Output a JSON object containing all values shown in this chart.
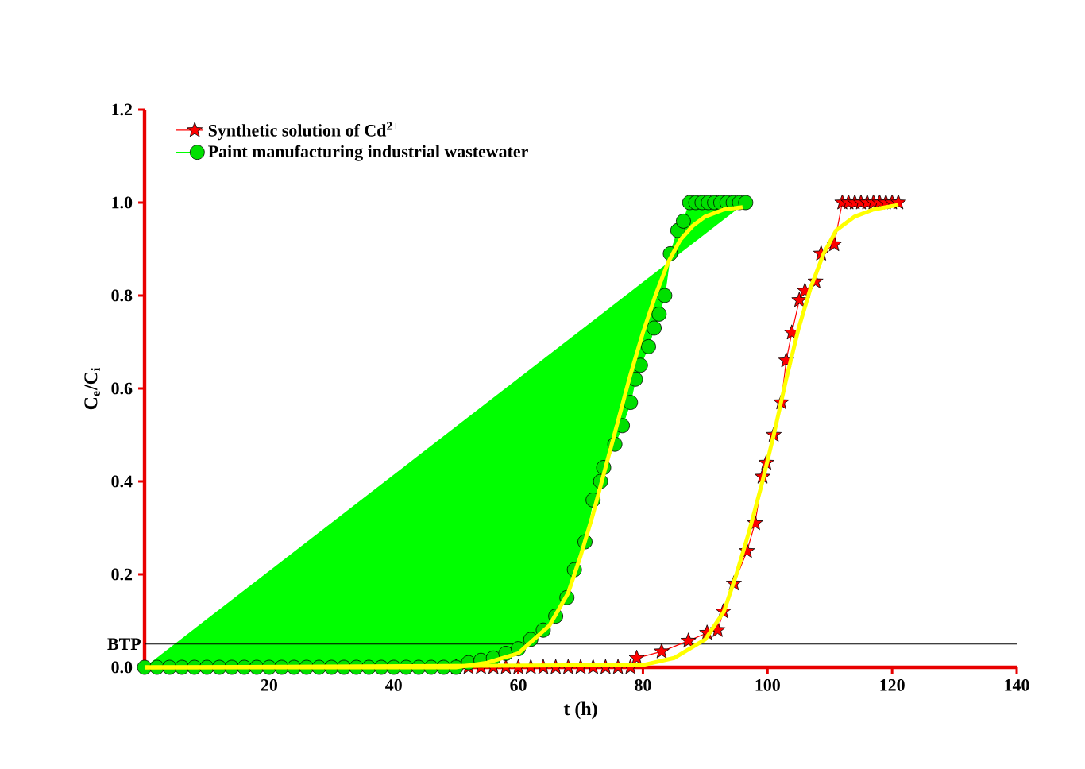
{
  "chart_data": {
    "type": "line",
    "xlabel": "t (h)",
    "ylabel": "C$_{e}$/C$_{i}$",
    "xlim": [
      0,
      140
    ],
    "ylim": [
      0,
      1.2
    ],
    "xticks": [
      20,
      40,
      60,
      80,
      100,
      120,
      140
    ],
    "yticks": [
      {
        "value": 0,
        "label": "0.0"
      },
      {
        "value": 0.2,
        "label": "0.2"
      },
      {
        "value": 0.4,
        "label": "0.4"
      },
      {
        "value": 0.6,
        "label": "0.6"
      },
      {
        "value": 0.8,
        "label": "0.8"
      },
      {
        "value": 1.0,
        "label": "1.0"
      },
      {
        "value": 1.2,
        "label": "1.2"
      }
    ],
    "grid": false,
    "legend": "top left",
    "ref_lines": [
      {
        "axis": "y",
        "value": 0.05,
        "label": "BTP",
        "color": "#000000"
      }
    ],
    "series": [
      {
        "name": "Synthetic solution of Cd$^{2+}$",
        "color": "#ff0000",
        "marker": "star",
        "x": [
          50,
          52,
          54,
          56,
          58,
          60,
          62,
          64,
          66,
          68,
          70,
          72,
          74,
          76,
          78,
          79,
          83,
          87.3,
          90.3,
          92,
          92.9,
          94.6,
          96.7,
          98,
          99.2,
          99.8,
          101,
          102.2,
          103,
          103.9,
          105.1,
          106,
          107.7,
          108.6,
          110.7,
          112,
          113,
          114,
          115,
          116,
          117,
          118,
          119,
          120,
          121
        ],
        "values": [
          0,
          0,
          0,
          0,
          0,
          0,
          0,
          0,
          0,
          0,
          0,
          0,
          0,
          0,
          0,
          0.02,
          0.034,
          0.057,
          0.074,
          0.08,
          0.12,
          0.18,
          0.25,
          0.31,
          0.41,
          0.44,
          0.5,
          0.57,
          0.66,
          0.72,
          0.79,
          0.81,
          0.83,
          0.89,
          0.91,
          1.0,
          1.0,
          1.0,
          1.0,
          1.0,
          1.0,
          1.0,
          1.0,
          1.0,
          1.0
        ]
      },
      {
        "name": "Paint manufacturing industrial wastewater",
        "type": "area",
        "color": "#00ff00",
        "marker": "circle",
        "x": [
          0,
          2,
          4,
          6,
          8,
          10,
          12,
          14,
          16,
          18,
          20,
          22,
          24,
          26,
          28,
          30,
          32,
          34,
          36,
          38,
          40,
          42,
          44,
          46,
          48,
          50,
          52,
          54,
          56,
          58,
          60,
          62,
          64,
          66,
          67.8,
          69,
          70.7,
          72,
          73.2,
          73.7,
          75.5,
          76.7,
          78,
          78.8,
          79.6,
          80.9,
          81.8,
          82.6,
          83.5,
          84.4,
          85.6,
          86.5,
          87.5,
          88.5,
          89.5,
          90.5,
          91.5,
          92.5,
          93.5,
          94.5,
          95.5,
          96.5
        ],
        "values": [
          0,
          0,
          0,
          0,
          0,
          0,
          0,
          0,
          0,
          0,
          0,
          0,
          0,
          0,
          0,
          0,
          0,
          0,
          0,
          0,
          0,
          0,
          0,
          0,
          0,
          0,
          0.01,
          0.015,
          0.02,
          0.03,
          0.04,
          0.06,
          0.08,
          0.11,
          0.15,
          0.21,
          0.27,
          0.36,
          0.4,
          0.43,
          0.48,
          0.52,
          0.57,
          0.62,
          0.65,
          0.69,
          0.73,
          0.76,
          0.8,
          0.89,
          0.94,
          0.96,
          1.0,
          1.0,
          1.0,
          1.0,
          1.0,
          1.0,
          1.0,
          1.0,
          1.0,
          1.0
        ]
      },
      {
        "color": "#ffff00",
        "marker": "none",
        "x": [
          0,
          50,
          55,
          60,
          65,
          68,
          70,
          72,
          74,
          76,
          78,
          80,
          82,
          84,
          86,
          88,
          90,
          93,
          96
        ],
        "values": [
          0,
          0,
          0.01,
          0.03,
          0.09,
          0.16,
          0.24,
          0.33,
          0.43,
          0.53,
          0.63,
          0.72,
          0.8,
          0.87,
          0.92,
          0.95,
          0.97,
          0.985,
          0.99
        ]
      },
      {
        "color": "#ffff00",
        "marker": "none",
        "x": [
          0,
          80,
          85,
          90,
          93,
          95,
          97,
          99,
          101,
          103,
          105,
          107,
          109,
          111,
          114,
          117,
          121
        ],
        "values": [
          0,
          0.005,
          0.02,
          0.06,
          0.12,
          0.2,
          0.29,
          0.39,
          0.5,
          0.62,
          0.73,
          0.82,
          0.89,
          0.94,
          0.97,
          0.985,
          0.995
        ]
      }
    ]
  }
}
